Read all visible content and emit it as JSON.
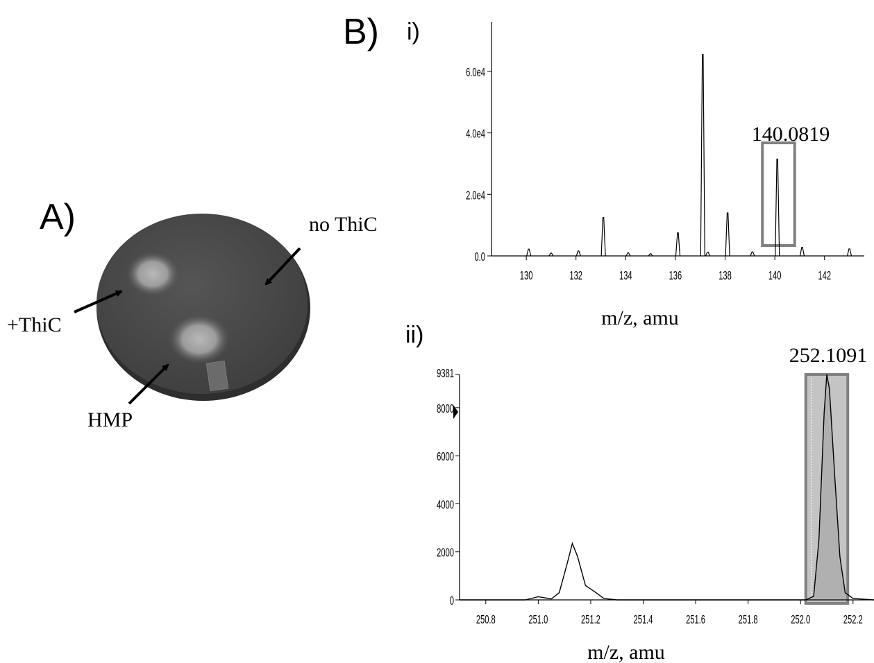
{
  "panel_a": {
    "letter": "A)",
    "labels": {
      "plus_thic": "+ThiC",
      "no_thic": "no  ThiC",
      "hmp": "HMP"
    }
  },
  "panel_b": {
    "letter": "B)",
    "sub_i": "i)",
    "sub_ii": "ii)"
  },
  "colors": {
    "plate_dark": "#4a4a4a",
    "plate_rim": "#2e2e2e",
    "box_gray": "#808080",
    "fill_gray": "#c4c4c4"
  },
  "chart_data": [
    {
      "type": "line",
      "id": "i",
      "xlabel": "m/z, amu",
      "ylabel": "",
      "xlim": [
        128.6,
        143.6
      ],
      "ylim": [
        0,
        76000
      ],
      "x_ticks": [
        "130",
        "132",
        "134",
        "136",
        "138",
        "140",
        "142"
      ],
      "y_ticks": [
        "0.0",
        "2.0e4",
        "4.0e4",
        "6.0e4"
      ],
      "annotation": "140.0819",
      "highlight_range": [
        139.5,
        140.8
      ],
      "peaks": [
        {
          "x": 130.1,
          "y": 2200
        },
        {
          "x": 131.0,
          "y": 900
        },
        {
          "x": 132.1,
          "y": 1600
        },
        {
          "x": 133.1,
          "y": 12500
        },
        {
          "x": 134.1,
          "y": 1000
        },
        {
          "x": 135.0,
          "y": 700
        },
        {
          "x": 136.1,
          "y": 7500
        },
        {
          "x": 137.1,
          "y": 65500
        },
        {
          "x": 137.3,
          "y": 1200
        },
        {
          "x": 138.1,
          "y": 14000
        },
        {
          "x": 139.1,
          "y": 1300
        },
        {
          "x": 140.1,
          "y": 31500
        },
        {
          "x": 141.1,
          "y": 2800
        },
        {
          "x": 143.0,
          "y": 2300
        }
      ]
    },
    {
      "type": "line",
      "id": "ii",
      "xlabel": "m/z, amu",
      "ylabel": "",
      "xlim": [
        250.7,
        252.28
      ],
      "ylim": [
        0,
        9381
      ],
      "x_ticks": [
        "250.8",
        "251.0",
        "251.2",
        "251.4",
        "251.6",
        "251.8",
        "252.0",
        "252.2"
      ],
      "y_ticks": [
        "0",
        "2000",
        "4000",
        "6000",
        "8000",
        "9381"
      ],
      "annotation": "252.1091",
      "highlight_range": [
        252.02,
        252.18
      ],
      "profile": [
        {
          "x": 250.7,
          "y": 0
        },
        {
          "x": 250.95,
          "y": 0
        },
        {
          "x": 251.0,
          "y": 130
        },
        {
          "x": 251.05,
          "y": 40
        },
        {
          "x": 251.08,
          "y": 300
        },
        {
          "x": 251.11,
          "y": 1500
        },
        {
          "x": 251.13,
          "y": 2350
        },
        {
          "x": 251.15,
          "y": 1800
        },
        {
          "x": 251.18,
          "y": 600
        },
        {
          "x": 251.22,
          "y": 300
        },
        {
          "x": 251.25,
          "y": 60
        },
        {
          "x": 251.3,
          "y": 0
        },
        {
          "x": 252.02,
          "y": 0
        },
        {
          "x": 252.05,
          "y": 150
        },
        {
          "x": 252.07,
          "y": 2500
        },
        {
          "x": 252.09,
          "y": 7800
        },
        {
          "x": 252.1,
          "y": 9381
        },
        {
          "x": 252.11,
          "y": 8800
        },
        {
          "x": 252.13,
          "y": 5200
        },
        {
          "x": 252.15,
          "y": 1800
        },
        {
          "x": 252.17,
          "y": 300
        },
        {
          "x": 252.2,
          "y": 60
        },
        {
          "x": 252.28,
          "y": 0
        }
      ]
    }
  ]
}
